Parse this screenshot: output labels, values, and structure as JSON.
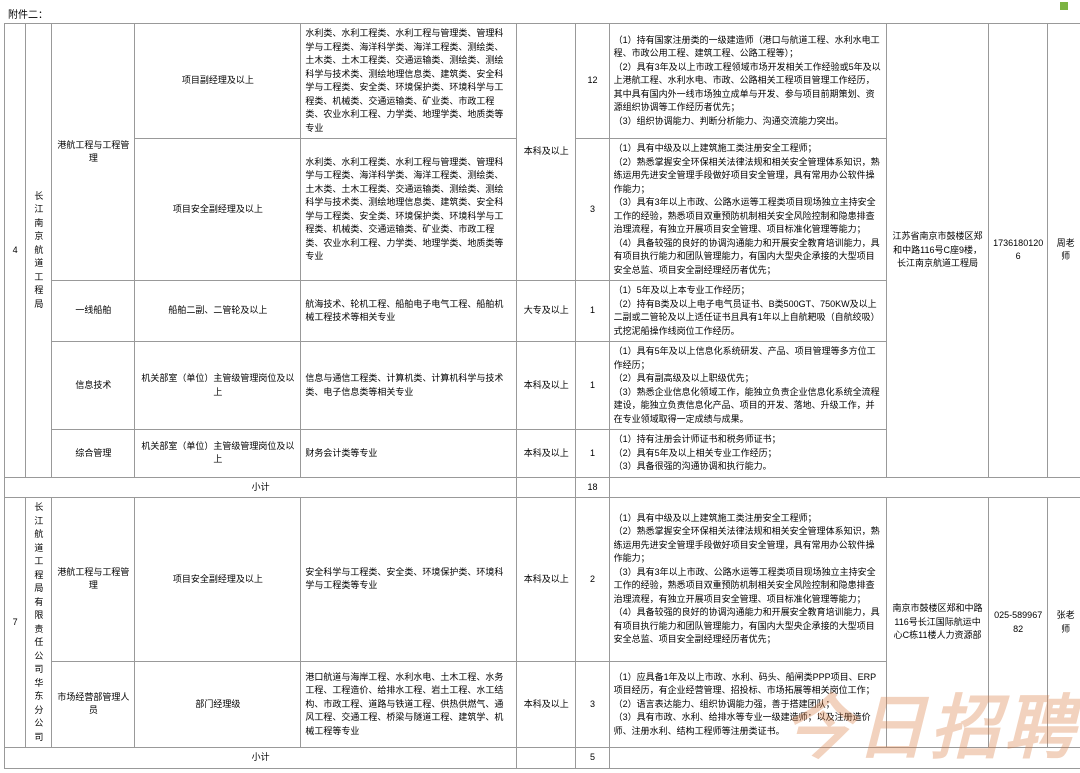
{
  "attachment_label": "附件二：",
  "colw": [
    "18",
    "22",
    "70",
    "70",
    "70",
    "182",
    "50",
    "28",
    "234",
    "86",
    "50",
    "30"
  ],
  "org4": {
    "idx": "4",
    "name": "长江南京航道工程局",
    "addr": "江苏省南京市鼓楼区郑和中路116号C座9楼，长江南京航道工程局",
    "tel": "17361801206",
    "contact": "周老师"
  },
  "org7": {
    "idx": "7",
    "name": "长江航道工程局有限责任公司华东分公司",
    "addr": "南京市鼓楼区郑和中路116号长江国际航运中心C栋11楼人力资源部",
    "tel": "025-58996782",
    "contact": "张老师"
  },
  "r1": {
    "cat": "港航工程与工程管理",
    "pos": "项目副经理及以上",
    "maj": "水利类、水利工程类、水利工程与管理类、管理科学与工程类、海洋科学类、海洋工程类、测绘类、土木类、土木工程类、交通运输类、测绘类、测绘科学与技术类、测绘地理信息类、建筑类、安全科学与工程类、安全类、环境保护类、环境科学与工程类、机械类、交通运输类、矿业类、市政工程类、农业水利工程、力学类、地理学类、地质类等专业",
    "edu": "本科及以上",
    "n": "12",
    "req": "（1）持有国家注册类的一级建造师（港口与航道工程、水利水电工程、市政公用工程、建筑工程、公路工程等）；\n（2）具有3年及以上市政工程领域市场开发相关工作经验或5年及以上港航工程、水利水电、市政、公路相关工程项目管理工作经历，其中具有国内外一线市场独立成单与开发、参与项目前期策划、资源组织协调等工作经历者优先；\n（3）组织协调能力、判断分析能力、沟通交流能力突出。"
  },
  "r2": {
    "pos": "项目安全副经理及以上",
    "maj": "水利类、水利工程类、水利工程与管理类、管理科学与工程类、海洋科学类、海洋工程类、测绘类、土木类、土木工程类、交通运输类、测绘类、测绘科学与技术类、测绘地理信息类、建筑类、安全科学与工程类、安全类、环境保护类、环境科学与工程类、机械类、交通运输类、矿业类、市政工程类、农业水利工程、力学类、地理学类、地质类等专业",
    "n": "3",
    "req": "（1）具有中级及以上建筑施工类注册安全工程师；\n（2）熟悉掌握安全环保相关法律法规和相关安全管理体系知识，熟练运用先进安全管理手段做好项目安全管理，具有常用办公软件操作能力；\n（3）具有3年以上市政、公路水运等工程类项目现场独立主持安全工作的经验，熟悉项目双重预防机制相关安全风险控制和隐患排查治理流程，有独立开展项目安全管理、项目标准化管理等能力；\n（4）具备较强的良好的协调沟通能力和开展安全教育培训能力，具有项目执行能力和团队管理能力，有国内大型央企承接的大型项目安全总监、项目安全副经理经历者优先；"
  },
  "r3": {
    "cat": "一线船舶",
    "pos": "船舶二副、二管轮及以上",
    "maj": "航海技术、轮机工程、船舶电子电气工程、船舶机械工程技术等相关专业",
    "edu": "大专及以上",
    "n": "1",
    "req": "（1）5年及以上本专业工作经历；\n（2）持有B类及以上电子电气员证书、B类500GT、750KW及以上二副或二管轮及以上适任证书且具有1年以上自航耙吸（自航绞吸）式挖泥船操作线岗位工作经历。"
  },
  "r4": {
    "cat": "信息技术",
    "pos": "机关部室（单位）主管级管理岗位及以上",
    "maj": "信息与通信工程类、计算机类、计算机科学与技术类、电子信息类等相关专业",
    "edu": "本科及以上",
    "n": "1",
    "req": "（1）具有5年及以上信息化系统研发、产品、项目管理等多方位工作经历；\n（2）具有副高级及以上职级优先；\n（3）熟悉企业信息化领域工作，能独立负责企业信息化系统全流程建设，能独立负责信息化产品、项目的开发、落地、升级工作，并在专业领域取得一定成绩与成果。"
  },
  "r5": {
    "cat": "综合管理",
    "pos": "机关部室（单位）主管级管理岗位及以上",
    "maj": "财务会计类等专业",
    "edu": "本科及以上",
    "n": "1",
    "req": "（1）持有注册会计师证书和税务师证书；\n（2）具有5年及以上相关专业工作经历；\n（3）具备很强的沟通协调和执行能力。"
  },
  "sub1": {
    "lbl": "小计",
    "n": "18"
  },
  "r6": {
    "cat": "港航工程与工程管理",
    "pos": "项目安全副经理及以上",
    "maj": "安全科学与工程类、安全类、环境保护类、环境科学与工程类等专业",
    "edu": "本科及以上",
    "n": "2",
    "req": "（1）具有中级及以上建筑施工类注册安全工程师；\n（2）熟悉掌握安全环保相关法律法规和相关安全管理体系知识，熟练运用先进安全管理手段做好项目安全管理，具有常用办公软件操作能力；\n（3）具有3年以上市政、公路水运等工程类项目现场独立主持安全工作的经验，熟悉项目双重预防机制相关安全风险控制和隐患排查治理流程，有独立开展项目安全管理、项目标准化管理等能力；\n（4）具备较强的良好的协调沟通能力和开展安全教育培训能力，具有项目执行能力和团队管理能力，有国内大型央企承接的大型项目安全总监、项目安全副经理经历者优先；"
  },
  "r7": {
    "cat": "市场经营部管理人员",
    "pos": "部门经理级",
    "maj": "港口航道与海岸工程、水利水电、土木工程、水务工程、工程造价、给排水工程、岩土工程、水工结构、市政工程、道路与铁道工程、供热供燃气、通风工程、交通工程、桥梁与隧道工程、建筑学、机械工程等专业",
    "edu": "本科及以上",
    "n": "3",
    "req": "（1）应具备1年及以上市政、水利、码头、船闸类PPP项目、ERP项目经历，有企业经营管理、招投标、市场拓展等相关岗位工作；\n（2）语言表达能力、组织协调能力强，善于搭建团队；\n（3）具有市政、水利、给排水等专业一级建造师；以及注册造价师、注册水利、结构工程师等注册类证书。"
  },
  "sub2": {
    "lbl": "小计",
    "n": "5"
  },
  "wm": "今日招聘"
}
